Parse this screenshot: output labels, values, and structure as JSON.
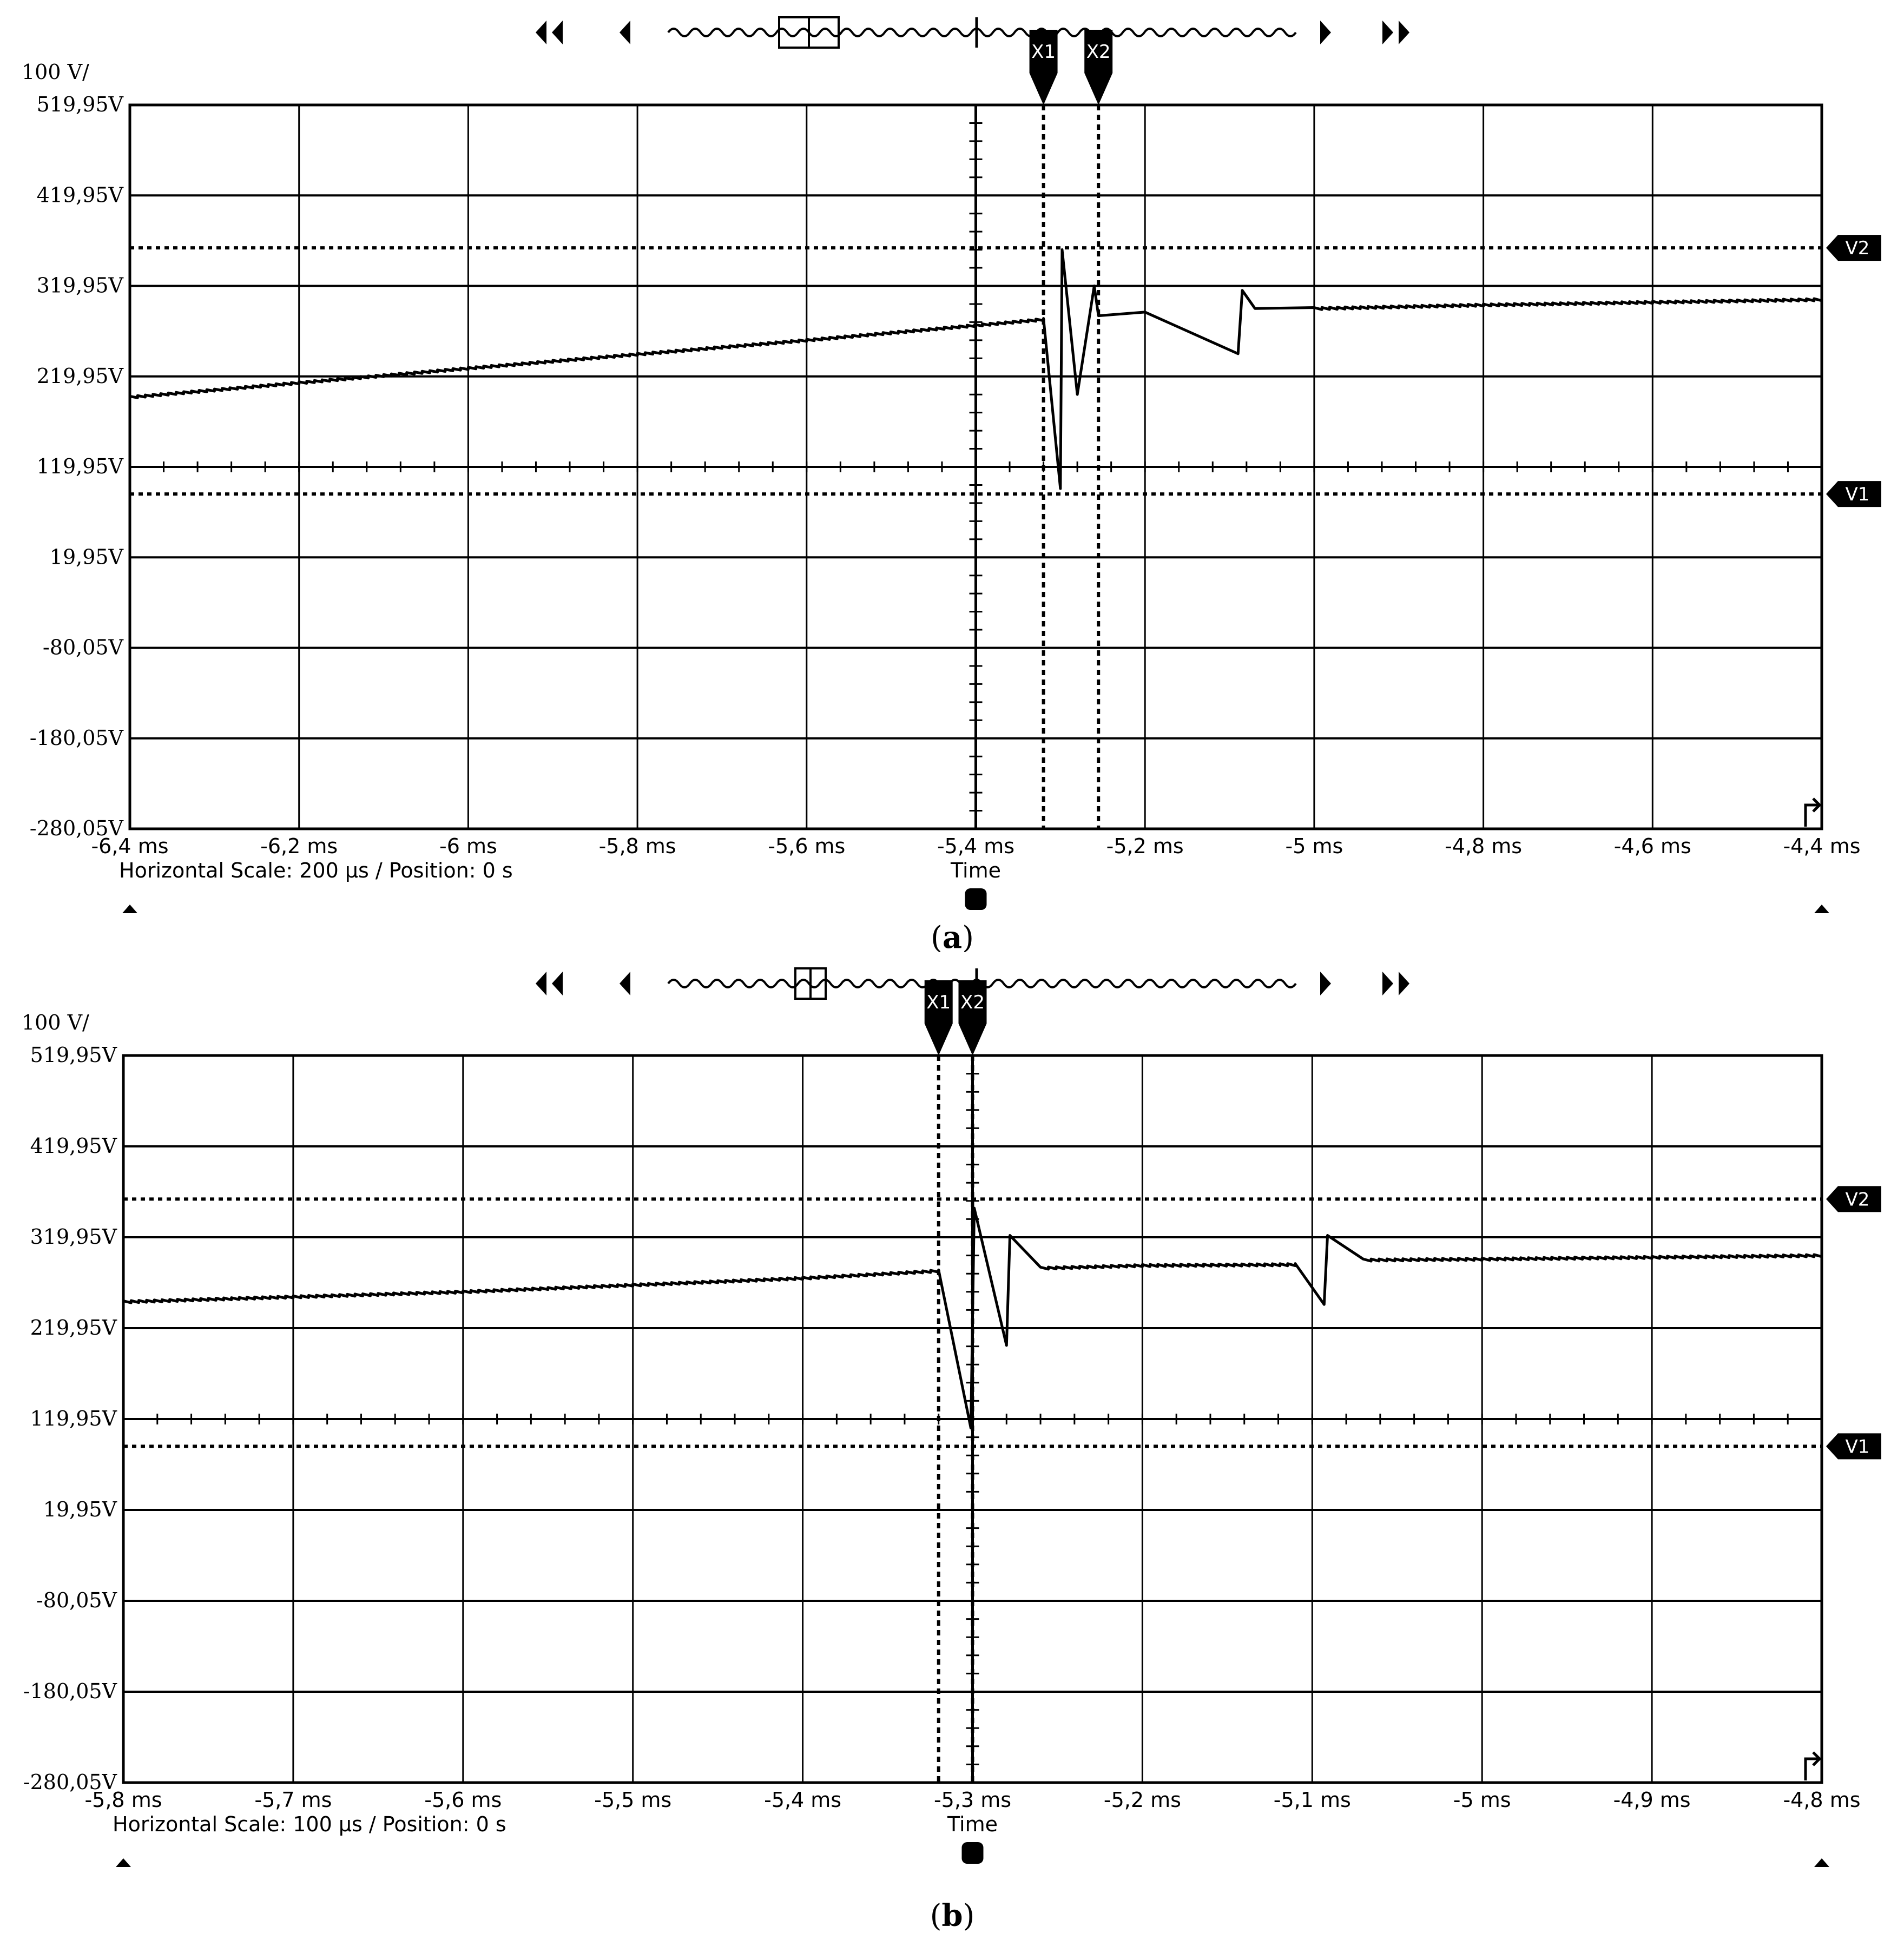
{
  "chart_data": [
    {
      "type": "line",
      "panel_label": "a",
      "y_scale_label": "100 V/",
      "y_ticks": [
        "519,95V",
        "419,95V",
        "319,95V",
        "219,95V",
        "119,95V",
        "19,95V",
        "-80,05V",
        "-180,05V",
        "-280,05V"
      ],
      "ylim": [
        -280.05,
        519.95
      ],
      "x_ticks": [
        "-6,4 ms",
        "-6,2 ms",
        "-6 ms",
        "-5,8 ms",
        "-5,6 ms",
        "-5,4 ms",
        "-5,2 ms",
        "-5 ms",
        "-4,8 ms",
        "-4,6 ms",
        "-4,4 ms"
      ],
      "xlim": [
        -6.4,
        -4.4
      ],
      "xlabel": "Time",
      "status_text": "Horizontal Scale: 200 µs /  Position: 0 s",
      "grid": true,
      "cursors": {
        "x": [
          {
            "name": "X1",
            "value": -5.32
          },
          {
            "name": "X2",
            "value": -5.255
          }
        ],
        "v": [
          {
            "name": "V2",
            "value": 362
          },
          {
            "name": "V1",
            "value": 90
          }
        ]
      },
      "series": [
        {
          "x": [
            -6.4,
            -6.0,
            -5.6,
            -5.32,
            -5.3,
            -5.298,
            -5.28,
            -5.26,
            -5.255,
            -5.2,
            -5.09,
            -5.085,
            -5.07,
            -5.0,
            -4.8,
            -4.6,
            -4.4
          ],
          "y": [
            198,
            230,
            261,
            284,
            96,
            360,
            200,
            320,
            287,
            291,
            245,
            315,
            295,
            296,
            300,
            303,
            306
          ]
        }
      ]
    },
    {
      "type": "line",
      "panel_label": "b",
      "y_scale_label": "100 V/",
      "y_ticks": [
        "519,95V",
        "419,95V",
        "319,95V",
        "219,95V",
        "119,95V",
        "19,95V",
        "-80,05V",
        "-180,05V",
        "-280,05V"
      ],
      "ylim": [
        -280.05,
        519.95
      ],
      "x_ticks": [
        "-5,8 ms",
        "-5,7 ms",
        "-5,6 ms",
        "-5,5 ms",
        "-5,4 ms",
        "-5,3 ms",
        "-5,2 ms",
        "-5,1 ms",
        "-5 ms",
        "-4,9 ms",
        "-4,8 ms"
      ],
      "xlim": [
        -5.8,
        -4.8
      ],
      "xlabel": "Time",
      "status_text": "Horizontal Scale: 100 µs /  Position: 0 s",
      "grid": true,
      "cursors": {
        "x": [
          {
            "name": "X1",
            "value": -5.32
          },
          {
            "name": "X2",
            "value": -5.3
          }
        ],
        "v": [
          {
            "name": "V2",
            "value": 362
          },
          {
            "name": "V1",
            "value": 90
          }
        ]
      },
      "series": [
        {
          "x": [
            -5.8,
            -5.6,
            -5.4,
            -5.32,
            -5.301,
            -5.299,
            -5.28,
            -5.278,
            -5.26,
            -5.2,
            -5.11,
            -5.093,
            -5.091,
            -5.07,
            -5.0,
            -4.8
          ],
          "y": [
            250,
            261,
            276,
            284,
            110,
            352,
            201,
            322,
            287,
            290,
            291,
            246,
            322,
            296,
            297,
            301
          ]
        }
      ]
    }
  ]
}
